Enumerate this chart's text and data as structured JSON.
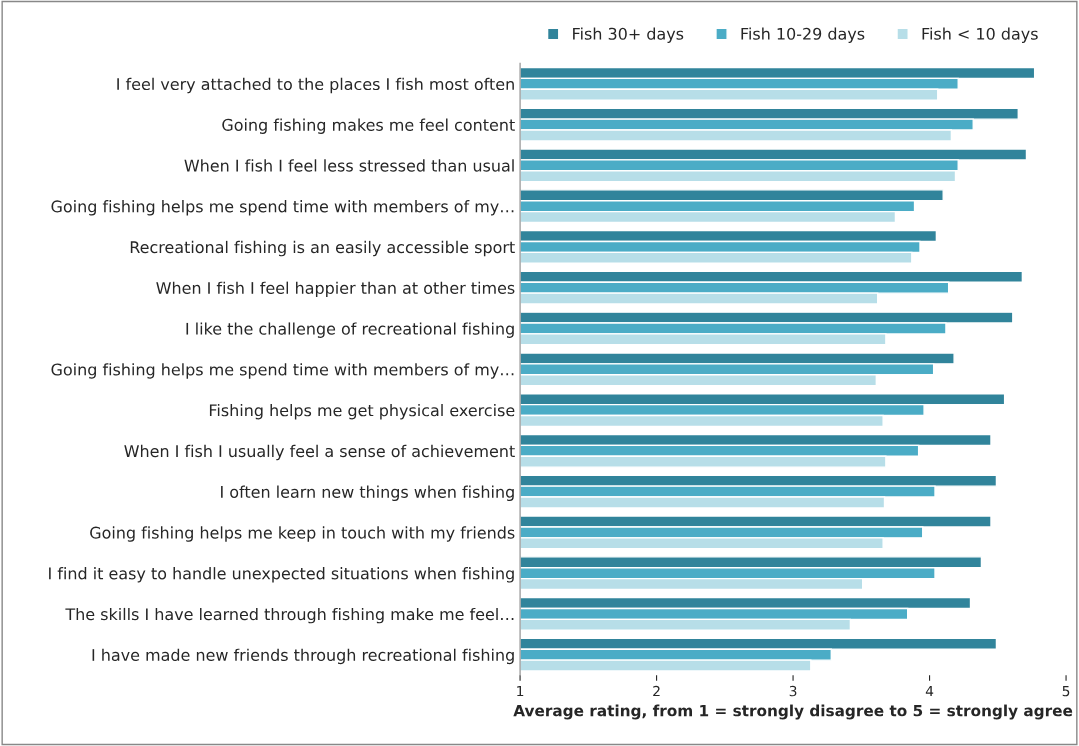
{
  "chart_data": {
    "type": "bar",
    "orientation": "horizontal",
    "xlabel": "Average rating, from 1 = strongly disagree to 5 = strongly agree",
    "categories": [
      "I feel very attached to the places I fish most often",
      "Going fishing makes me feel content",
      "When I fish I feel less stressed than usual",
      "Going fishing helps me spend time with members of my…",
      "Recreational fishing is an easily accessible sport",
      "When I fish I feel happier than at other times",
      "I like the challenge of recreational fishing",
      "Going fishing helps me spend time with members of my…",
      "Fishing helps me get physical exercise",
      "When I fish I usually feel a sense of achievement",
      "I often learn new things when fishing",
      "Going fishing helps me keep in touch with my friends",
      "I find it easy to handle unexpected situations when fishing",
      "The skills I have learned through fishing make me feel…",
      "I have made new friends through recreational fishing"
    ],
    "series": [
      {
        "name": "Fish 30+ days",
        "color": "#31849b",
        "values": [
          4.77,
          4.65,
          4.71,
          4.1,
          4.05,
          4.68,
          4.61,
          4.18,
          4.55,
          4.45,
          4.49,
          4.45,
          4.38,
          4.3,
          4.49
        ]
      },
      {
        "name": "Fish 10-29 days",
        "color": "#4bacc6",
        "values": [
          4.21,
          4.32,
          4.21,
          3.89,
          3.93,
          4.14,
          4.12,
          4.03,
          3.96,
          3.92,
          4.04,
          3.95,
          4.04,
          3.84,
          3.28
        ]
      },
      {
        "name": "Fish < 10 days",
        "color": "#b7dee8",
        "values": [
          4.06,
          4.16,
          4.19,
          3.75,
          3.87,
          3.62,
          3.68,
          3.61,
          3.66,
          3.68,
          3.67,
          3.66,
          3.51,
          3.42,
          3.13
        ]
      }
    ],
    "xlim": [
      1,
      5
    ],
    "xticks": [
      1,
      2,
      3,
      4,
      5
    ],
    "grid": false,
    "legend": "top"
  }
}
